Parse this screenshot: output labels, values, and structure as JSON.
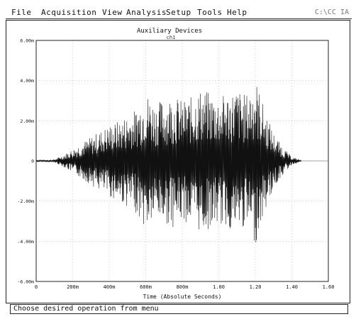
{
  "menu": {
    "items": [
      "File",
      "Acquisition",
      "View",
      "Analysis",
      "Setup",
      "Tools",
      "Help"
    ],
    "right_text": "C:\\CC IA"
  },
  "status": {
    "text": "Choose desired operation from menu"
  },
  "chart_data": {
    "type": "line",
    "title": "Auxiliary Devices",
    "subtitle": "ch1",
    "xlabel": "Time (Absolute Seconds)",
    "ylabel": "",
    "xlim": [
      0,
      1.6
    ],
    "ylim": [
      -6.0,
      6.0
    ],
    "x_ticks": [
      0,
      0.2,
      0.4,
      0.6,
      0.8,
      1.0,
      1.2,
      1.4,
      1.6
    ],
    "x_tick_labels": [
      "0",
      "200m",
      "400m",
      "600m",
      "800m",
      "1.00",
      "1.20",
      "1.40",
      "1.60"
    ],
    "y_ticks": [
      -6,
      -4,
      -2,
      0,
      2,
      4,
      6
    ],
    "y_tick_labels": [
      "-6.00m",
      "-4.00m",
      "-2.00m",
      "0",
      "2.00m",
      "4.00m",
      "6.00m"
    ],
    "grid": true,
    "series": [
      {
        "values_description": "vibration-like waveform; amplitude near zero until ~0.15s, envelope grows to ~±2m by 0.4s, peaks ~±3.5–4.5m between 0.6s and 1.25s, decays to near zero by ~1.45s",
        "x": [
          0.0,
          0.05,
          0.1,
          0.15,
          0.2,
          0.25,
          0.3,
          0.35,
          0.4,
          0.45,
          0.5,
          0.55,
          0.6,
          0.65,
          0.7,
          0.75,
          0.8,
          0.85,
          0.9,
          0.95,
          1.0,
          1.05,
          1.1,
          1.15,
          1.2,
          1.25,
          1.3,
          1.35,
          1.4,
          1.45
        ],
        "envelope": [
          0.05,
          0.05,
          0.08,
          0.3,
          0.6,
          0.9,
          1.2,
          1.5,
          1.8,
          2.0,
          2.3,
          2.6,
          3.5,
          2.9,
          3.1,
          3.3,
          3.0,
          3.2,
          3.6,
          3.4,
          3.2,
          3.4,
          3.6,
          3.3,
          4.2,
          2.6,
          1.4,
          0.7,
          0.2,
          0.05
        ]
      }
    ]
  }
}
